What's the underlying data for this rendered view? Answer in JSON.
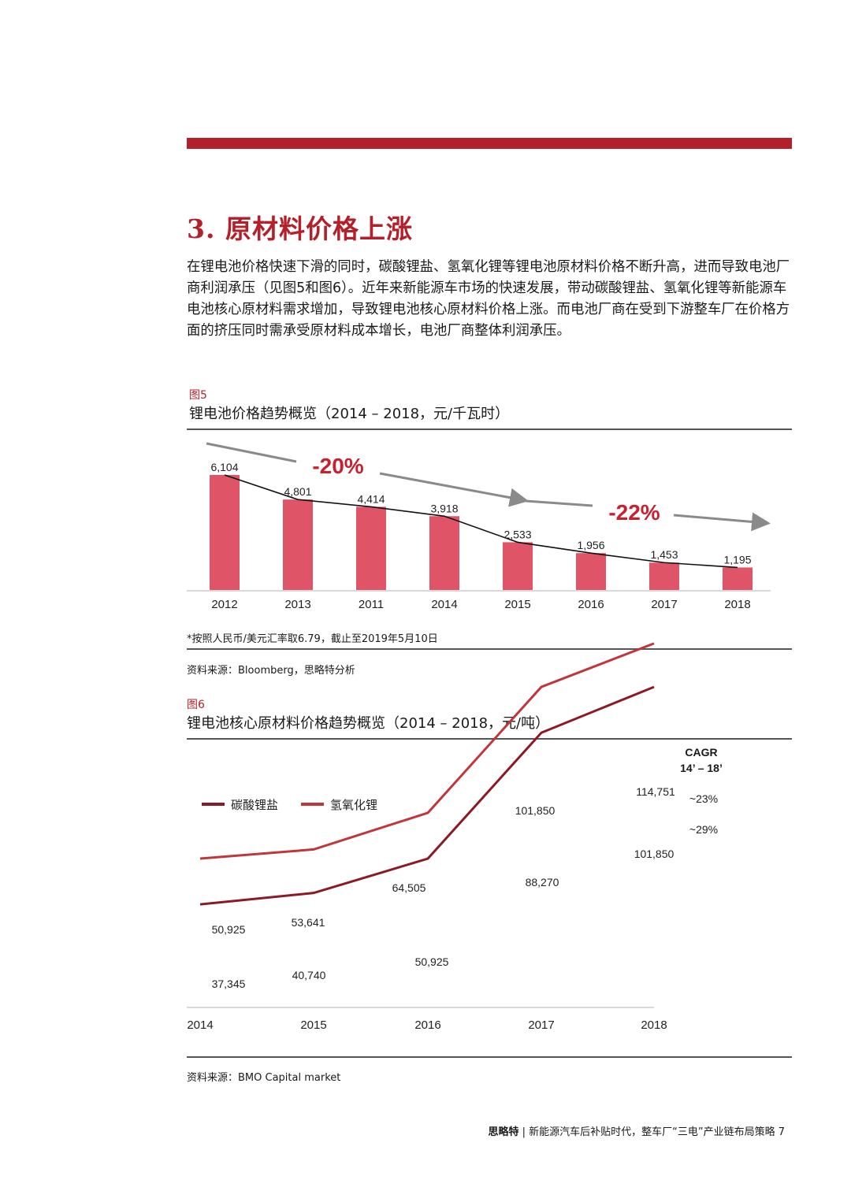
{
  "section": {
    "title": "3. 原材料价格上涨"
  },
  "intro_text": "在锂电池价格快速下滑的同时，碳酸锂盐、氢氧化锂等锂电池原材料价格不断升高，进而导致电池厂商利润承压（见图5和图6）。近年来新能源车市场的快速发展，带动碳酸锂盐、氢氧化锂等新能源车电池核心原材料需求增加，导致锂电池核心原材料价格上涨。而电池厂商在受到下游整车厂在价格方面的挤压同时需承受原材料成本增长，电池厂商整体利润承压。",
  "figure5": {
    "number": "图5",
    "note": "*按照人民币/美元汇率取6.79，截止至2019年5月10日",
    "source": "资料来源：Bloomberg，思略特分析"
  },
  "figure6": {
    "number": "图6",
    "source": "资料来源：BMO Capital market"
  },
  "chart_data": [
    {
      "type": "bar",
      "title": "锂电池价格趋势概览（2014 – 2018，元/千瓦时）",
      "categories": [
        "2012",
        "2013",
        "2011",
        "2014",
        "2015",
        "2016",
        "2017",
        "2018"
      ],
      "values": [
        6104,
        4801,
        4414,
        3918,
        2533,
        1956,
        1453,
        1195
      ],
      "value_labels": [
        "6,104",
        "4,801",
        "4,414",
        "3,918",
        "2,533",
        "1,956",
        "1,453",
        "1,195"
      ],
      "overlay": "line through bar tops",
      "annotations": [
        "-20%",
        "-22%"
      ],
      "ylim": [
        0,
        7000
      ],
      "colors": {
        "bar": "#e05468",
        "line": "#111111",
        "annotation": "#c8202e",
        "arrow": "#8a8a8a"
      }
    },
    {
      "type": "line",
      "title": "锂电池核心原材料价格趋势概览（2014 – 2018，元/吨）",
      "x": [
        "2014",
        "2015",
        "2016",
        "2017",
        "2018"
      ],
      "series": [
        {
          "name": "碳酸锂盐",
          "values": [
            37345,
            40740,
            50925,
            88270,
            101850
          ],
          "labels": [
            "37,345",
            "40,740",
            "50,925",
            "88,270",
            "101,850"
          ],
          "cagr": "~29%",
          "color": "#8b1a24"
        },
        {
          "name": "氢氧化锂",
          "values": [
            50925,
            53641,
            64505,
            101850,
            114751
          ],
          "labels": [
            "50,925",
            "53,641",
            "64,505",
            "101,850",
            "114,751"
          ],
          "cagr": "~23%",
          "color": "#c0363a"
        }
      ],
      "cagr_header": [
        "CAGR",
        "14’ – 18’"
      ],
      "ylim": [
        20000,
        120000
      ],
      "legend": "top-left"
    }
  ],
  "footer": {
    "brand": "思略特",
    "text": " | 新能源汽车后补贴时代，整车厂“三电”产业链布局策略",
    "page": "7"
  }
}
